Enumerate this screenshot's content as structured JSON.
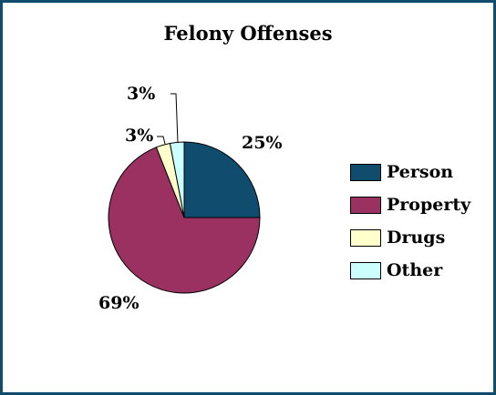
{
  "chart_data": {
    "type": "pie",
    "title": "Felony Offenses",
    "categories": [
      "Person",
      "Property",
      "Drugs",
      "Other"
    ],
    "values": [
      25,
      69,
      3,
      3
    ],
    "labels": [
      "25%",
      "69%",
      "3%",
      "3%"
    ],
    "colors": [
      "#0f4c6e",
      "#9b3161",
      "#ffffcc",
      "#ccffff"
    ],
    "legend_position": "right"
  }
}
